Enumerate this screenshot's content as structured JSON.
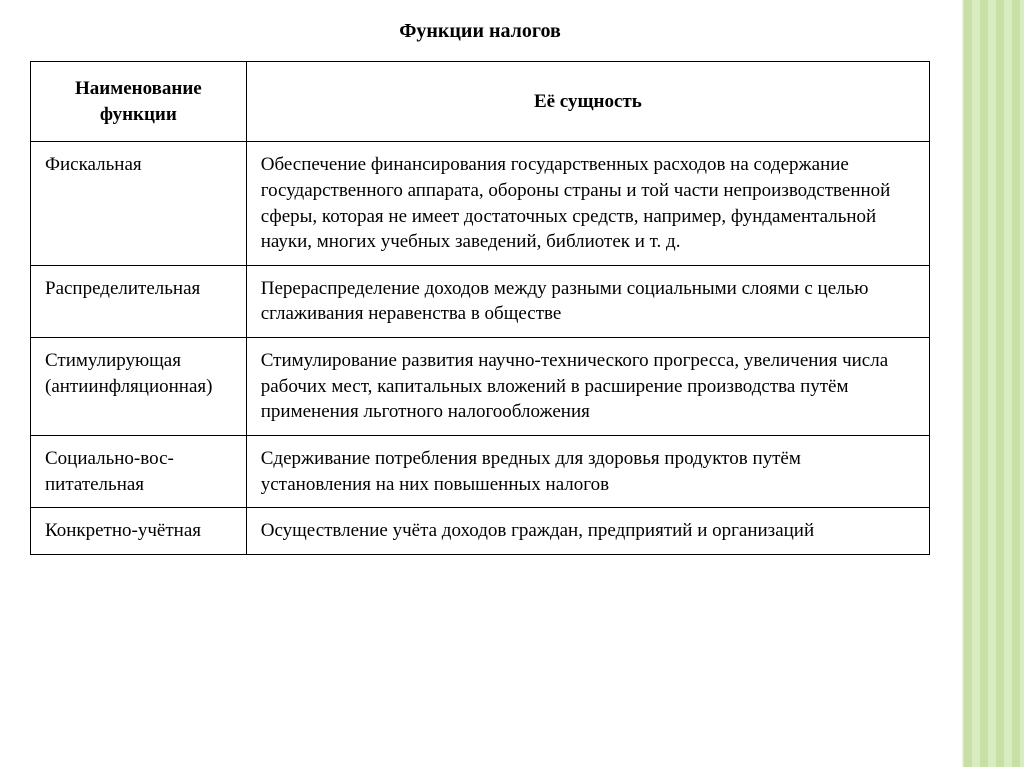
{
  "title": "Функции налогов",
  "table": {
    "headers": {
      "name": "Наименование функции",
      "desc": "Её сущность"
    },
    "rows": [
      {
        "name": "Фискальная",
        "desc": "Обеспечение финансирования государствен­ных расходов на содержание государственно­го аппарата, обороны страны и той части не­производственной сферы, которая не имеет достаточных средств, например, фундамен­тальной науки, многих учебных заведений, библиотек и т. д."
      },
      {
        "name": "Распределитель­ная",
        "desc": "Перераспределение доходов между разными социальными слоями с целью сглаживания неравенства в обществе"
      },
      {
        "name": "Стимулирую­щая (антиин­фляционная)",
        "desc": "Стимулирование развития научно-техничес­кого прогресса, увеличения числа рабочих мест, капитальных вложений в расширение производства путём применения льготного налогообложения"
      },
      {
        "name": "Социально-вос­питательная",
        "desc": "Сдерживание потребления вредных для здо­ровья продуктов путём установления на них повышенных налогов"
      },
      {
        "name": "Конкретно-учёт­ная",
        "desc": "Осуществление учёта доходов граждан, пред­приятий и организаций"
      }
    ]
  },
  "colors": {
    "border": "#000000",
    "text": "#000000",
    "bg": "#ffffff",
    "accent": "#cde4a6"
  },
  "font": {
    "family": "Georgia, Times New Roman, serif",
    "title_size": 20,
    "cell_size": 19
  }
}
